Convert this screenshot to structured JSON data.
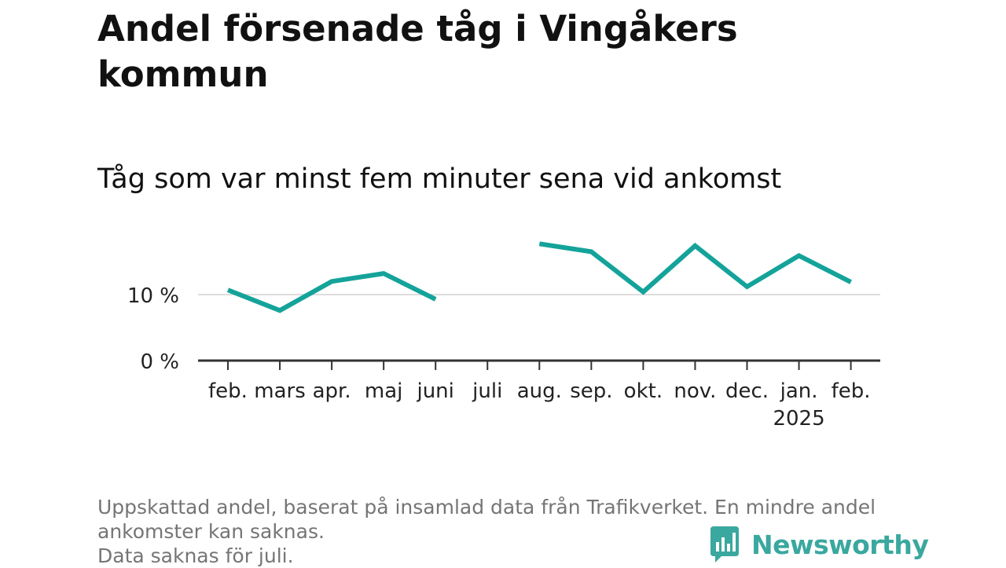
{
  "title": "Andel försenade tåg i Vingåkers kommun",
  "subtitle": "Tåg som var minst fem minuter sena vid ankomst",
  "footnote": {
    "line1": "Uppskattad andel, baserat på insamlad data från Trafikverket. En mindre andel",
    "line2": "ankomster kan saknas.",
    "line3": "Data saknas för juli."
  },
  "brand": {
    "name": "Newsworthy",
    "icon": "newsworthy-logo-icon",
    "color": "#3aa89f"
  },
  "chart_data": {
    "type": "line",
    "categories": [
      "feb.",
      "mars",
      "apr.",
      "maj",
      "juni",
      "juli",
      "aug.",
      "sep.",
      "okt.",
      "nov.",
      "dec.",
      "jan.",
      "feb."
    ],
    "year_label": {
      "index": 11,
      "text": "2025"
    },
    "series": [
      {
        "values": [
          10.7,
          7.6,
          12.0,
          13.2,
          9.3,
          null,
          17.7,
          16.5,
          10.4,
          17.4,
          11.2,
          15.9,
          11.9
        ]
      }
    ],
    "ylim": [
      0,
      20
    ],
    "yticks": [
      {
        "value": 0,
        "label": "0 %"
      },
      {
        "value": 10,
        "label": "10 %"
      }
    ],
    "grid": true,
    "line_color": "#14a39a",
    "grid_color": "#dddddd",
    "axis_color": "#333333"
  }
}
